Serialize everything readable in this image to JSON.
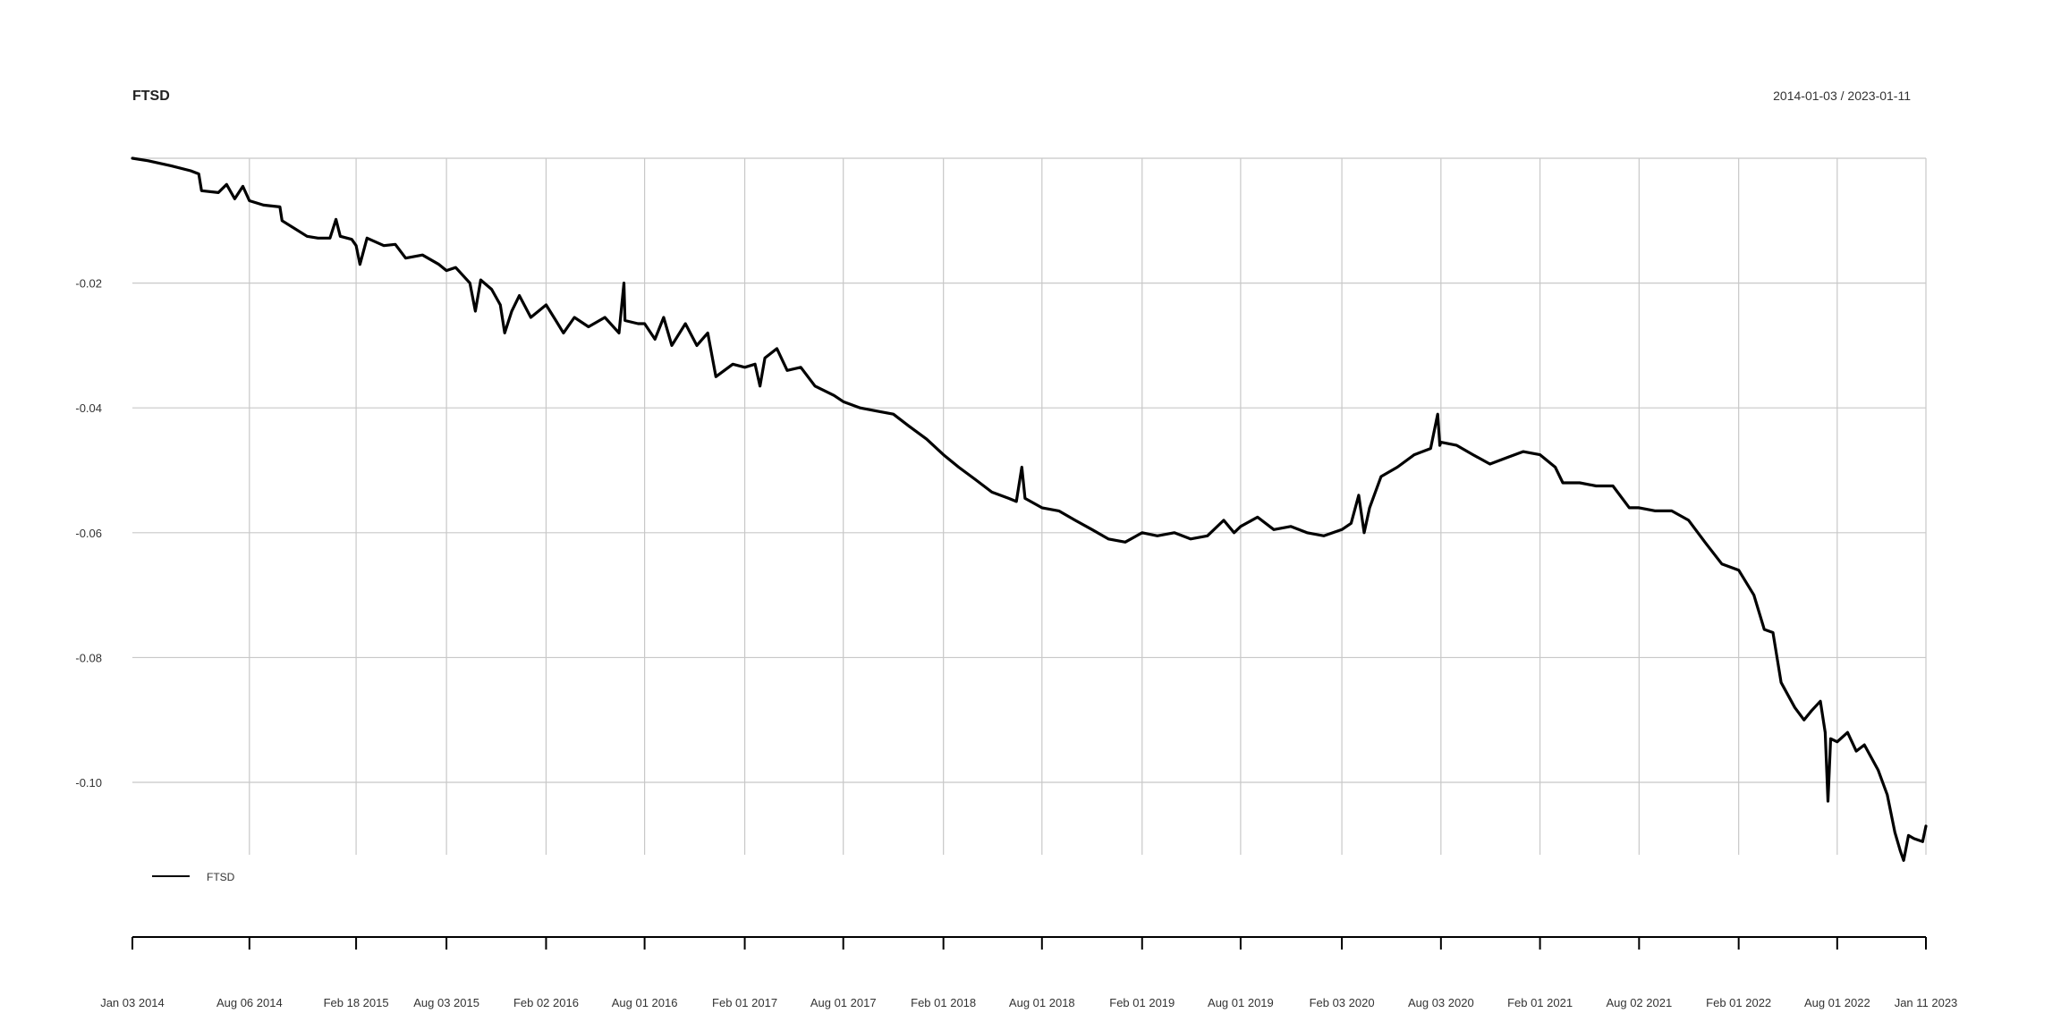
{
  "chart_data": {
    "type": "line",
    "title": "FTSD",
    "date_range": "2014-01-03 / 2023-01-11",
    "xlabel": "",
    "ylabel": "",
    "x_start": "2014-01-03",
    "x_end": "2023-01-11",
    "ylim": [
      -0.1116,
      0.0
    ],
    "y_ticks": [
      {
        "value": -0.02,
        "label": "-0.02"
      },
      {
        "value": -0.04,
        "label": "-0.04"
      },
      {
        "value": -0.06,
        "label": "-0.06"
      },
      {
        "value": -0.08,
        "label": "-0.08"
      },
      {
        "value": -0.1,
        "label": "-0.10"
      }
    ],
    "x_ticks": [
      {
        "date": "2014-01-03",
        "label": "Jan 03 2014"
      },
      {
        "date": "2014-08-06",
        "label": "Aug 06 2014"
      },
      {
        "date": "2015-02-18",
        "label": "Feb 18 2015"
      },
      {
        "date": "2015-08-03",
        "label": "Aug 03 2015"
      },
      {
        "date": "2016-02-02",
        "label": "Feb 02 2016"
      },
      {
        "date": "2016-08-01",
        "label": "Aug 01 2016"
      },
      {
        "date": "2017-02-01",
        "label": "Feb 01 2017"
      },
      {
        "date": "2017-08-01",
        "label": "Aug 01 2017"
      },
      {
        "date": "2018-02-01",
        "label": "Feb 01 2018"
      },
      {
        "date": "2018-08-01",
        "label": "Aug 01 2018"
      },
      {
        "date": "2019-02-01",
        "label": "Feb 01 2019"
      },
      {
        "date": "2019-08-01",
        "label": "Aug 01 2019"
      },
      {
        "date": "2020-02-03",
        "label": "Feb 03 2020"
      },
      {
        "date": "2020-08-03",
        "label": "Aug 03 2020"
      },
      {
        "date": "2021-02-01",
        "label": "Feb 01 2021"
      },
      {
        "date": "2021-08-02",
        "label": "Aug 02 2021"
      },
      {
        "date": "2022-02-01",
        "label": "Feb 01 2022"
      },
      {
        "date": "2022-08-01",
        "label": "Aug 01 2022"
      },
      {
        "date": "2023-01-11",
        "label": "Jan 11 2023"
      }
    ],
    "grid": true,
    "legend_position": "bottom-left",
    "series": [
      {
        "name": "FTSD",
        "color": "#000000",
        "points": [
          [
            "2014-01-03",
            0.0
          ],
          [
            "2014-02-01",
            -0.0004
          ],
          [
            "2014-03-15",
            -0.0012
          ],
          [
            "2014-04-20",
            -0.002
          ],
          [
            "2014-05-05",
            -0.0025
          ],
          [
            "2014-05-10",
            -0.0052
          ],
          [
            "2014-06-10",
            -0.0055
          ],
          [
            "2014-06-25",
            -0.0042
          ],
          [
            "2014-07-10",
            -0.0065
          ],
          [
            "2014-07-25",
            -0.0045
          ],
          [
            "2014-08-06",
            -0.0068
          ],
          [
            "2014-09-01",
            -0.0075
          ],
          [
            "2014-10-01",
            -0.0078
          ],
          [
            "2014-10-05",
            -0.01
          ],
          [
            "2014-11-20",
            -0.0125
          ],
          [
            "2014-12-10",
            -0.0128
          ],
          [
            "2015-01-01",
            -0.0128
          ],
          [
            "2015-01-12",
            -0.0098
          ],
          [
            "2015-01-20",
            -0.0125
          ],
          [
            "2015-02-10",
            -0.013
          ],
          [
            "2015-02-18",
            -0.014
          ],
          [
            "2015-02-25",
            -0.017
          ],
          [
            "2015-03-10",
            -0.0128
          ],
          [
            "2015-04-10",
            -0.014
          ],
          [
            "2015-05-01",
            -0.0138
          ],
          [
            "2015-05-20",
            -0.016
          ],
          [
            "2015-06-20",
            -0.0155
          ],
          [
            "2015-07-20",
            -0.017
          ],
          [
            "2015-08-03",
            -0.018
          ],
          [
            "2015-08-20",
            -0.0175
          ],
          [
            "2015-09-15",
            -0.02
          ],
          [
            "2015-09-25",
            -0.0245
          ],
          [
            "2015-10-05",
            -0.0195
          ],
          [
            "2015-10-25",
            -0.021
          ],
          [
            "2015-11-10",
            -0.0235
          ],
          [
            "2015-11-18",
            -0.028
          ],
          [
            "2015-12-01",
            -0.0245
          ],
          [
            "2015-12-15",
            -0.022
          ],
          [
            "2016-01-05",
            -0.0255
          ],
          [
            "2016-02-02",
            -0.0235
          ],
          [
            "2016-02-20",
            -0.026
          ],
          [
            "2016-03-05",
            -0.028
          ],
          [
            "2016-03-25",
            -0.0255
          ],
          [
            "2016-04-20",
            -0.027
          ],
          [
            "2016-05-20",
            -0.0255
          ],
          [
            "2016-06-15",
            -0.028
          ],
          [
            "2016-06-24",
            -0.02
          ],
          [
            "2016-06-26",
            -0.026
          ],
          [
            "2016-07-20",
            -0.0265
          ],
          [
            "2016-08-01",
            -0.0265
          ],
          [
            "2016-08-20",
            -0.029
          ],
          [
            "2016-09-05",
            -0.0255
          ],
          [
            "2016-09-20",
            -0.03
          ],
          [
            "2016-10-15",
            -0.0265
          ],
          [
            "2016-11-05",
            -0.03
          ],
          [
            "2016-11-25",
            -0.028
          ],
          [
            "2016-12-10",
            -0.035
          ],
          [
            "2017-01-10",
            -0.033
          ],
          [
            "2017-02-01",
            -0.0335
          ],
          [
            "2017-02-20",
            -0.033
          ],
          [
            "2017-03-01",
            -0.0365
          ],
          [
            "2017-03-10",
            -0.032
          ],
          [
            "2017-04-01",
            -0.0305
          ],
          [
            "2017-04-20",
            -0.034
          ],
          [
            "2017-05-15",
            -0.0335
          ],
          [
            "2017-06-10",
            -0.0365
          ],
          [
            "2017-07-15",
            -0.038
          ],
          [
            "2017-08-01",
            -0.039
          ],
          [
            "2017-09-01",
            -0.04
          ],
          [
            "2017-10-01",
            -0.0405
          ],
          [
            "2017-11-01",
            -0.041
          ],
          [
            "2017-12-01",
            -0.043
          ],
          [
            "2018-01-01",
            -0.045
          ],
          [
            "2018-02-01",
            -0.0475
          ],
          [
            "2018-03-01",
            -0.0495
          ],
          [
            "2018-04-01",
            -0.0515
          ],
          [
            "2018-05-01",
            -0.0535
          ],
          [
            "2018-06-01",
            -0.0545
          ],
          [
            "2018-06-15",
            -0.055
          ],
          [
            "2018-06-25",
            -0.0495
          ],
          [
            "2018-07-01",
            -0.0545
          ],
          [
            "2018-08-01",
            -0.056
          ],
          [
            "2018-09-01",
            -0.0565
          ],
          [
            "2018-10-01",
            -0.058
          ],
          [
            "2018-11-01",
            -0.0595
          ],
          [
            "2018-12-01",
            -0.061
          ],
          [
            "2019-01-01",
            -0.0615
          ],
          [
            "2019-02-01",
            -0.06
          ],
          [
            "2019-03-01",
            -0.0605
          ],
          [
            "2019-04-01",
            -0.06
          ],
          [
            "2019-05-01",
            -0.061
          ],
          [
            "2019-06-01",
            -0.0605
          ],
          [
            "2019-07-01",
            -0.058
          ],
          [
            "2019-07-20",
            -0.06
          ],
          [
            "2019-08-01",
            -0.059
          ],
          [
            "2019-09-01",
            -0.0575
          ],
          [
            "2019-10-01",
            -0.0595
          ],
          [
            "2019-11-01",
            -0.059
          ],
          [
            "2019-12-01",
            -0.06
          ],
          [
            "2020-01-01",
            -0.0605
          ],
          [
            "2020-02-03",
            -0.0595
          ],
          [
            "2020-02-20",
            -0.0585
          ],
          [
            "2020-03-05",
            -0.054
          ],
          [
            "2020-03-15",
            -0.06
          ],
          [
            "2020-03-25",
            -0.056
          ],
          [
            "2020-04-15",
            -0.051
          ],
          [
            "2020-05-15",
            -0.0495
          ],
          [
            "2020-06-15",
            -0.0475
          ],
          [
            "2020-07-15",
            -0.0465
          ],
          [
            "2020-07-28",
            -0.041
          ],
          [
            "2020-08-01",
            -0.046
          ],
          [
            "2020-08-03",
            -0.0455
          ],
          [
            "2020-09-01",
            -0.046
          ],
          [
            "2020-10-01",
            -0.0475
          ],
          [
            "2020-11-01",
            -0.049
          ],
          [
            "2020-12-01",
            -0.048
          ],
          [
            "2021-01-01",
            -0.047
          ],
          [
            "2021-02-01",
            -0.0475
          ],
          [
            "2021-03-01",
            -0.0495
          ],
          [
            "2021-03-15",
            -0.052
          ],
          [
            "2021-04-15",
            -0.052
          ],
          [
            "2021-05-15",
            -0.0525
          ],
          [
            "2021-06-15",
            -0.0525
          ],
          [
            "2021-07-15",
            -0.056
          ],
          [
            "2021-08-02",
            -0.056
          ],
          [
            "2021-09-01",
            -0.0565
          ],
          [
            "2021-10-01",
            -0.0565
          ],
          [
            "2021-11-01",
            -0.058
          ],
          [
            "2021-12-01",
            -0.0615
          ],
          [
            "2022-01-01",
            -0.065
          ],
          [
            "2022-02-01",
            -0.066
          ],
          [
            "2022-03-01",
            -0.07
          ],
          [
            "2022-03-20",
            -0.0755
          ],
          [
            "2022-04-05",
            -0.076
          ],
          [
            "2022-04-20",
            -0.084
          ],
          [
            "2022-05-15",
            -0.088
          ],
          [
            "2022-06-01",
            -0.09
          ],
          [
            "2022-06-15",
            -0.0885
          ],
          [
            "2022-07-01",
            -0.087
          ],
          [
            "2022-07-10",
            -0.092
          ],
          [
            "2022-07-15",
            -0.103
          ],
          [
            "2022-07-20",
            -0.093
          ],
          [
            "2022-08-01",
            -0.0935
          ],
          [
            "2022-08-20",
            -0.092
          ],
          [
            "2022-09-05",
            -0.095
          ],
          [
            "2022-09-20",
            -0.094
          ],
          [
            "2022-10-15",
            -0.098
          ],
          [
            "2022-11-01",
            -0.102
          ],
          [
            "2022-11-15",
            -0.108
          ],
          [
            "2022-11-25",
            -0.111
          ],
          [
            "2022-12-01",
            -0.1125
          ],
          [
            "2022-12-10",
            -0.1085
          ],
          [
            "2022-12-20",
            -0.109
          ],
          [
            "2023-01-05",
            -0.1095
          ],
          [
            "2023-01-11",
            -0.107
          ]
        ]
      }
    ]
  }
}
